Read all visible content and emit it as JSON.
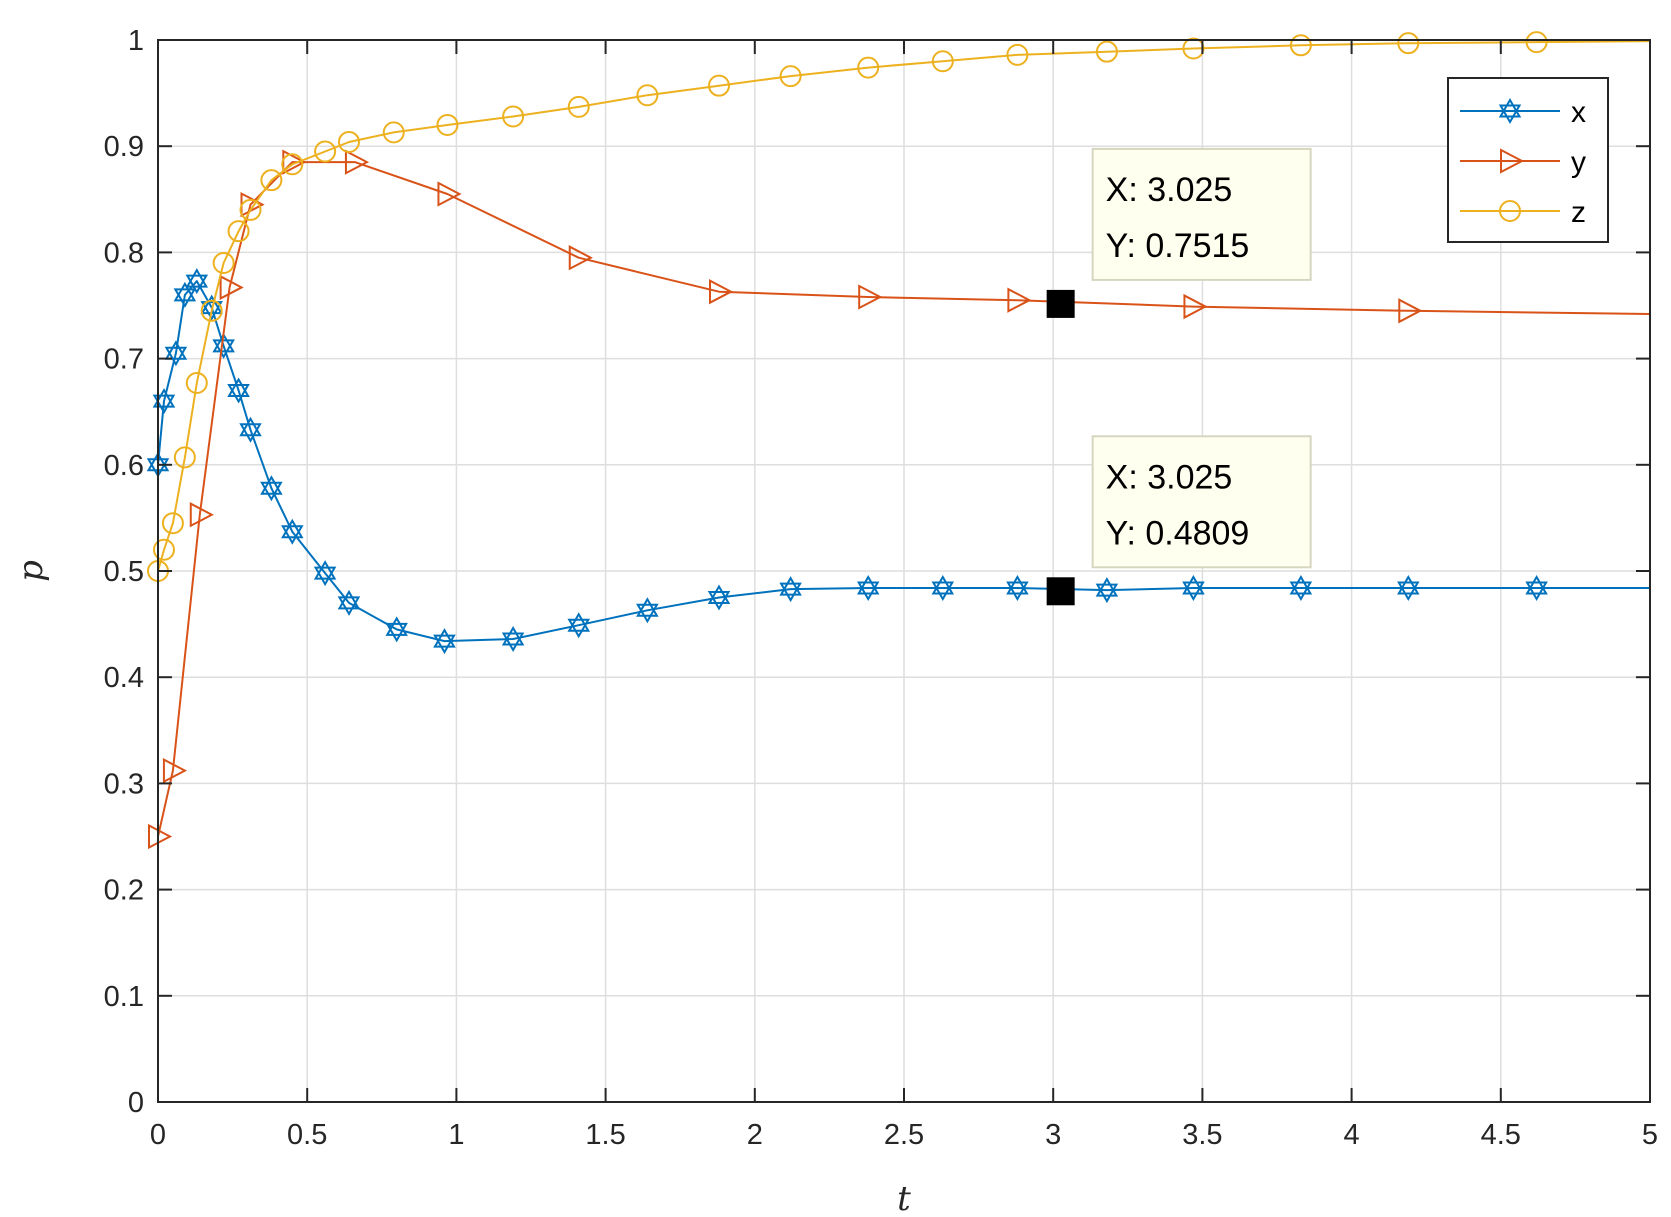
{
  "chart_data": {
    "type": "line",
    "xlabel": "t",
    "ylabel": "p",
    "xlim": [
      0,
      5
    ],
    "ylim": [
      0,
      1
    ],
    "xticks": [
      "0",
      "0.5",
      "1",
      "1.5",
      "2",
      "2.5",
      "3",
      "3.5",
      "4",
      "4.5",
      "5"
    ],
    "yticks": [
      "0",
      "0.1",
      "0.2",
      "0.3",
      "0.4",
      "0.5",
      "0.6",
      "0.7",
      "0.8",
      "0.9",
      "1"
    ],
    "grid": true,
    "legend_position": "top-right",
    "series": [
      {
        "name": "x",
        "color": "#0072BD",
        "marker": "hexagram",
        "points": [
          [
            0,
            0.6
          ],
          [
            0.02,
            0.66
          ],
          [
            0.06,
            0.705
          ],
          [
            0.09,
            0.76
          ],
          [
            0.13,
            0.773
          ],
          [
            0.18,
            0.748
          ],
          [
            0.22,
            0.712
          ],
          [
            0.27,
            0.67
          ],
          [
            0.31,
            0.633
          ],
          [
            0.38,
            0.578
          ],
          [
            0.45,
            0.537
          ],
          [
            0.56,
            0.498
          ],
          [
            0.64,
            0.47
          ],
          [
            0.8,
            0.445
          ],
          [
            0.96,
            0.434
          ],
          [
            1.19,
            0.436
          ],
          [
            1.41,
            0.449
          ],
          [
            1.64,
            0.463
          ],
          [
            1.88,
            0.475
          ],
          [
            2.12,
            0.483
          ],
          [
            2.38,
            0.484
          ],
          [
            2.63,
            0.484
          ],
          [
            2.88,
            0.484
          ],
          [
            3.18,
            0.482
          ],
          [
            3.47,
            0.484
          ],
          [
            3.83,
            0.484
          ],
          [
            4.19,
            0.484
          ],
          [
            4.62,
            0.484
          ],
          [
            5,
            0.484
          ]
        ]
      },
      {
        "name": "y",
        "color": "#D95319",
        "marker": "triangle-right",
        "points": [
          [
            0,
            0.25
          ],
          [
            0.05,
            0.312
          ],
          [
            0.14,
            0.553
          ],
          [
            0.24,
            0.767
          ],
          [
            0.31,
            0.845
          ],
          [
            0.45,
            0.885
          ],
          [
            0.66,
            0.885
          ],
          [
            0.97,
            0.855
          ],
          [
            1.41,
            0.795
          ],
          [
            1.88,
            0.763
          ],
          [
            2.38,
            0.758
          ],
          [
            2.88,
            0.755
          ],
          [
            3.47,
            0.749
          ],
          [
            4.19,
            0.745
          ],
          [
            5,
            0.742
          ]
        ]
      },
      {
        "name": "z",
        "color": "#EDB120",
        "marker": "circle",
        "points": [
          [
            0,
            0.5
          ],
          [
            0.02,
            0.52
          ],
          [
            0.05,
            0.545
          ],
          [
            0.09,
            0.607
          ],
          [
            0.13,
            0.677
          ],
          [
            0.18,
            0.745
          ],
          [
            0.22,
            0.79
          ],
          [
            0.27,
            0.82
          ],
          [
            0.31,
            0.84
          ],
          [
            0.38,
            0.868
          ],
          [
            0.45,
            0.883
          ],
          [
            0.56,
            0.895
          ],
          [
            0.64,
            0.904
          ],
          [
            0.79,
            0.913
          ],
          [
            0.97,
            0.92
          ],
          [
            1.19,
            0.928
          ],
          [
            1.41,
            0.937
          ],
          [
            1.64,
            0.948
          ],
          [
            1.88,
            0.957
          ],
          [
            2.12,
            0.966
          ],
          [
            2.38,
            0.974
          ],
          [
            2.63,
            0.98
          ],
          [
            2.88,
            0.986
          ],
          [
            3.18,
            0.989
          ],
          [
            3.47,
            0.992
          ],
          [
            3.83,
            0.995
          ],
          [
            4.19,
            0.997
          ],
          [
            4.62,
            0.998
          ],
          [
            5,
            0.999
          ]
        ]
      }
    ],
    "datatips": [
      {
        "x": 3.025,
        "y": 0.7515,
        "line1": "X: 3.025",
        "line2": "Y: 0.7515"
      },
      {
        "x": 3.025,
        "y": 0.4809,
        "line1": "X: 3.025",
        "line2": "Y: 0.4809"
      }
    ]
  }
}
